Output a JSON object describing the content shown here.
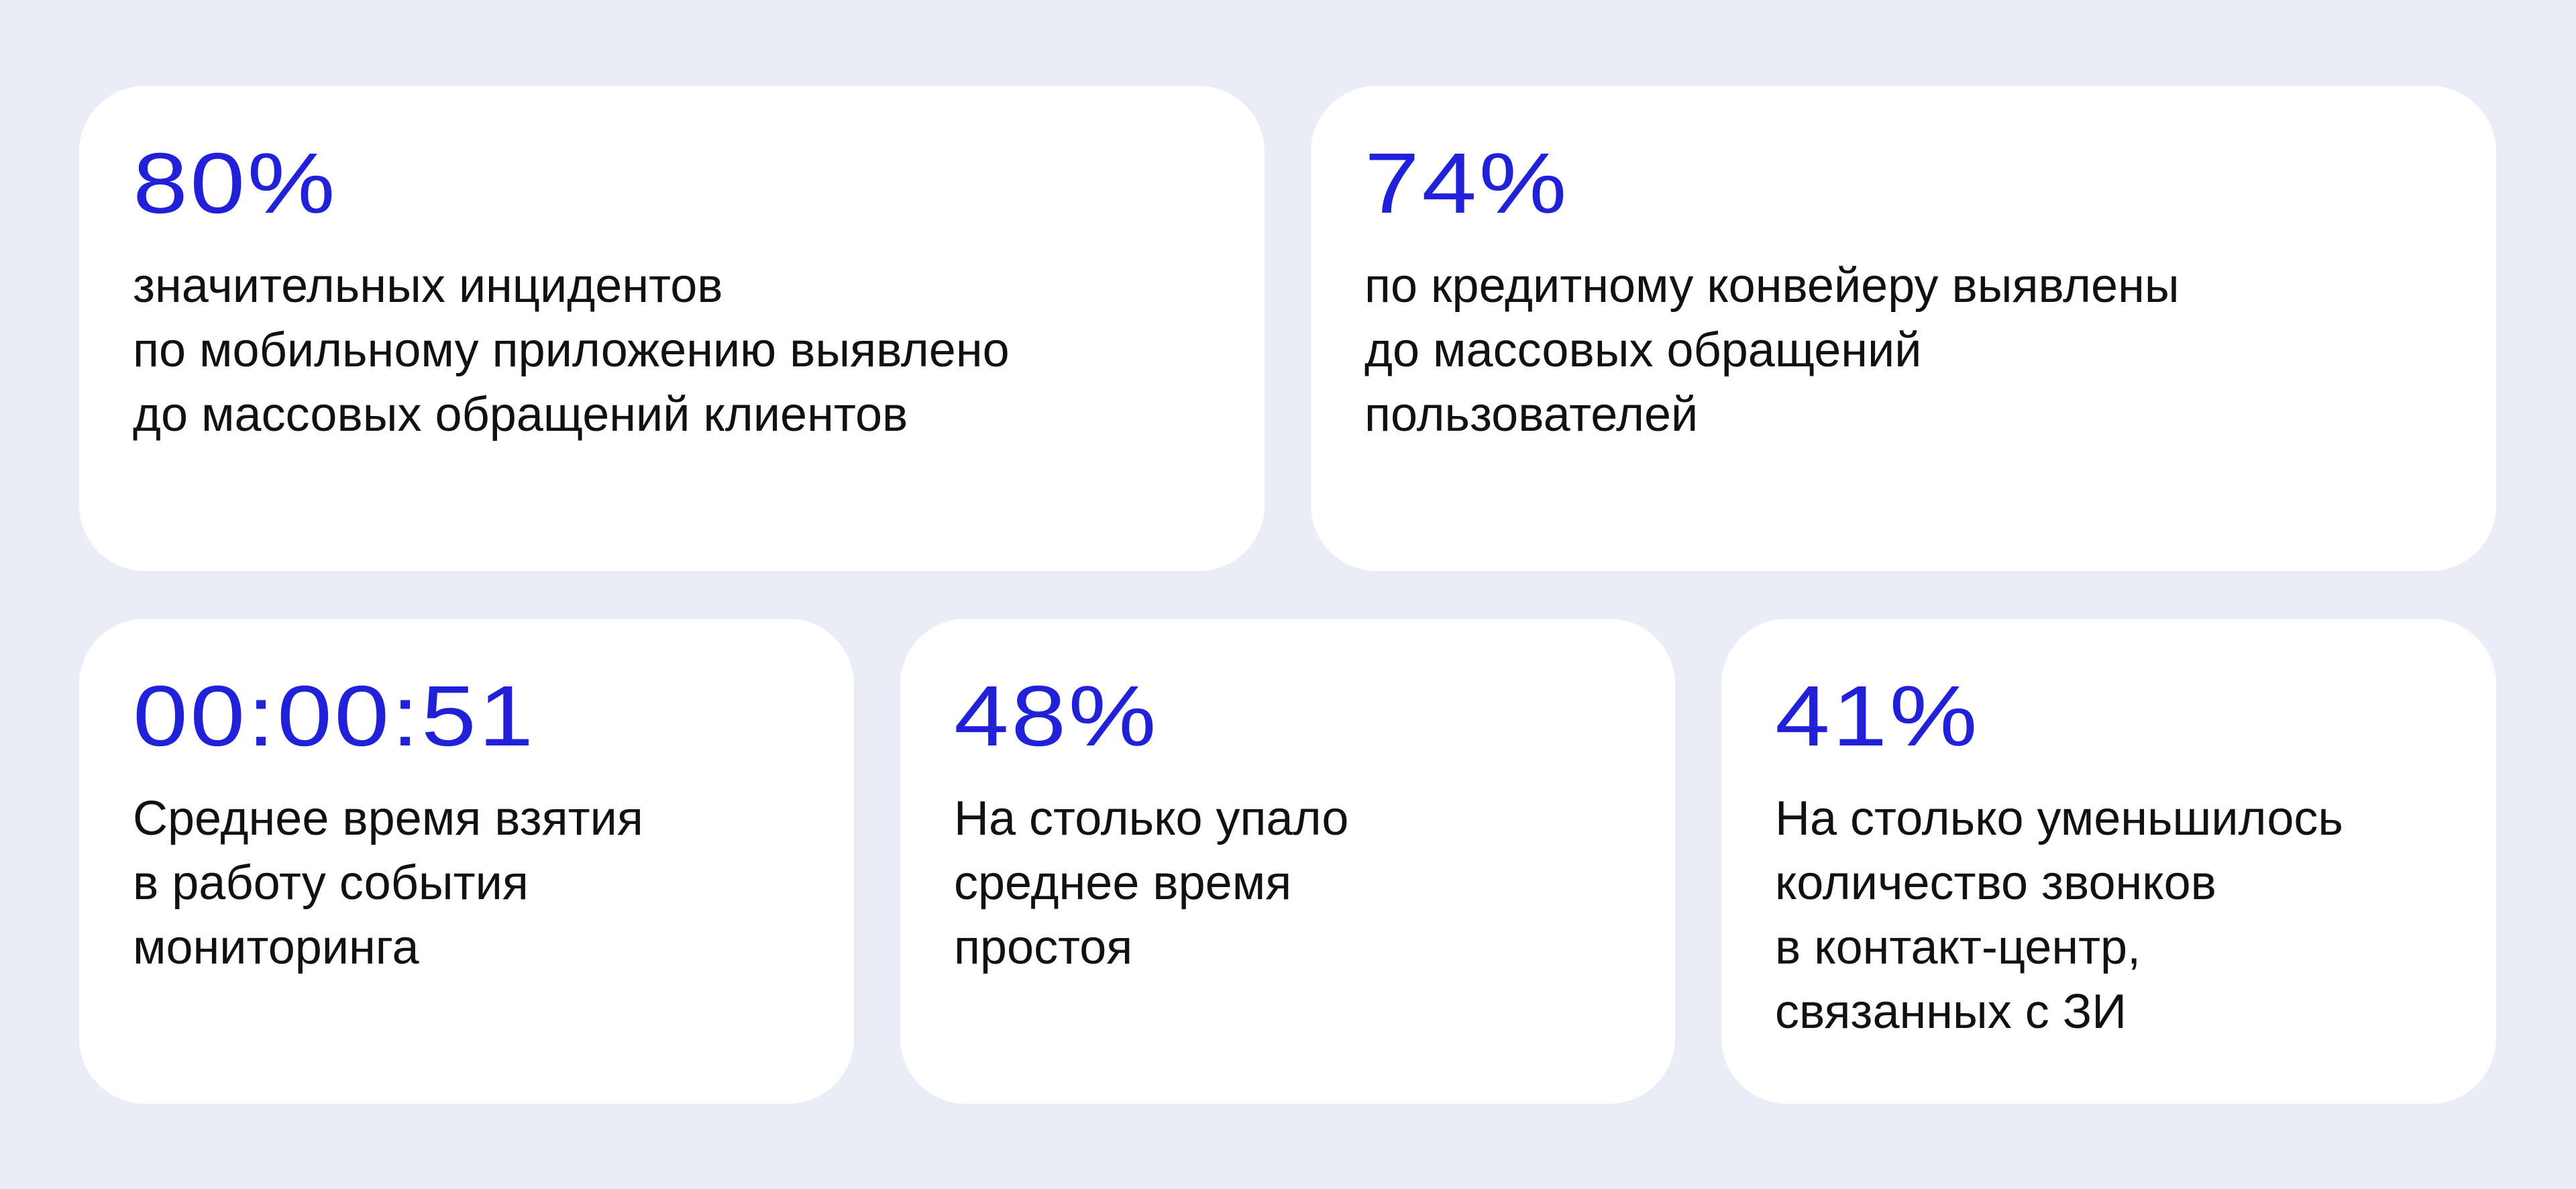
{
  "colors": {
    "background": "#eaedf7",
    "card": "#ffffff",
    "accent": "#2121d9",
    "text": "#111111"
  },
  "cards": [
    {
      "value": "80%",
      "lines": [
        "значительных инцидентов",
        "по мобильному приложению выявлено",
        "до массовых обращений клиентов"
      ]
    },
    {
      "value": "74%",
      "lines": [
        "по кредитному конвейеру выявлены",
        "до массовых обращений",
        "пользователей"
      ]
    },
    {
      "value": "00:00:51",
      "lines": [
        "Среднее время взятия",
        "в работу события",
        "мониторинга"
      ]
    },
    {
      "value": "48%",
      "lines": [
        "На столько упало",
        "среднее время",
        "простоя"
      ]
    },
    {
      "value": "41%",
      "lines": [
        "На столько уменьшилось",
        "количество звонков",
        "в контакт-центр,",
        "связанных с ЗИ"
      ]
    }
  ]
}
